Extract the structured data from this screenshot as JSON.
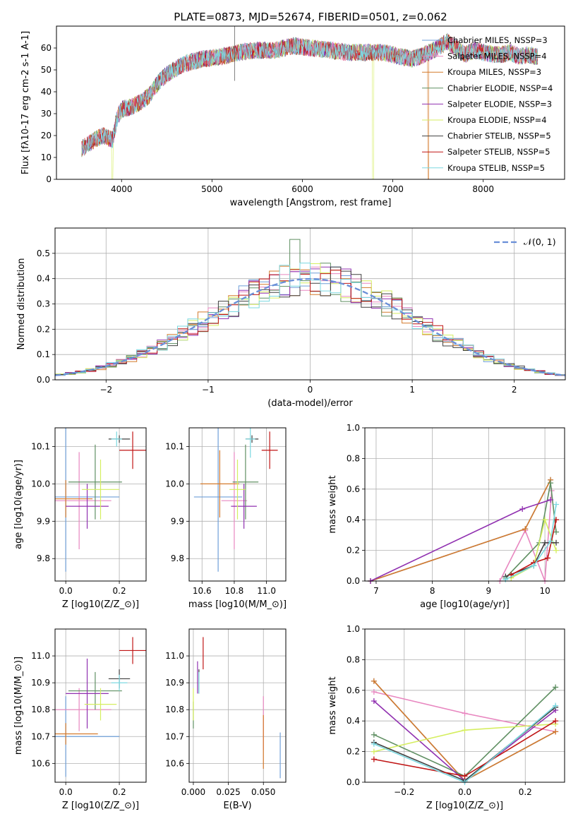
{
  "chart_data": [
    {
      "id": "spectrum",
      "type": "line",
      "title": "PLATE=0873, MJD=52674, FIBERID=0501, z=0.062",
      "xlabel": "wavelength [Angstrom, rest frame]",
      "ylabel": "Flux [f$_\\lambda$10$^{-17}$ erg cm$^{-2}$ s$^{-1}$ A$^{-1}$]",
      "xlim": [
        3280,
        8900
      ],
      "ylim": [
        0,
        70
      ],
      "xticks": [
        4000,
        5000,
        6000,
        7000,
        8000
      ],
      "yticks": [
        0,
        10,
        20,
        30,
        40,
        50,
        60
      ],
      "grid": false,
      "legend_position": "top-right",
      "legend": [
        "Chabrier MILES, N$_{SSP}$=3",
        "Salpeter MILES, N$_{SSP}$=4",
        "Kroupa MILES, N$_{SSP}$=3",
        "Chabrier ELODIE, N$_{SSP}$=4",
        "Salpeter ELODIE, N$_{SSP}$=3",
        "Kroupa ELODIE, N$_{SSP}$=4",
        "Chabrier STELIB, N$_{SSP}$=5",
        "Salpeter STELIB, N$_{SSP}$=5",
        "Kroupa STELIB, N$_{SSP}$=5"
      ],
      "continuum": {
        "x": [
          3560,
          3700,
          3800,
          3900,
          3950,
          4000,
          4100,
          4200,
          4300,
          4400,
          4500,
          4700,
          4900,
          5100,
          5300,
          5500,
          5700,
          5900,
          6100,
          6300,
          6500,
          6700,
          6900,
          7100,
          7200,
          7300,
          7400,
          7500,
          7600,
          7700,
          7800,
          7900,
          8000,
          8100,
          8200,
          8300,
          8400,
          8500,
          8600
        ],
        "y": [
          14,
          18,
          20,
          18,
          28,
          32,
          33,
          35,
          38,
          44,
          48,
          53,
          55,
          56,
          58,
          59,
          59,
          61,
          60,
          59,
          58,
          58,
          58,
          56,
          55,
          56,
          58,
          60,
          63,
          60,
          57,
          59,
          58,
          57,
          57,
          58,
          56,
          57,
          56
        ]
      },
      "x_start": 3560,
      "x_end": 8600
    },
    {
      "id": "residuals",
      "type": "line",
      "xlabel": "(data-model)/error",
      "ylabel": "Normed distribution",
      "xlim": [
        -2.5,
        2.5
      ],
      "ylim": [
        0,
        0.6
      ],
      "xticks": [
        -2,
        -1,
        0,
        1,
        2
      ],
      "yticks": [
        0.0,
        0.1,
        0.2,
        0.3,
        0.4,
        0.5
      ],
      "grid": true,
      "legend_position": "top-right",
      "legend": [
        "$\\mathcal{N}(0,1)$"
      ],
      "hist_bin_width": 0.1
    },
    {
      "id": "age-Z",
      "type": "scatter",
      "xlabel": "Z [log$_{10}$(Z/Z$_\\odot$)]",
      "ylabel": "age  [log$_{10}$(age/yr)]",
      "xlim": [
        -0.04,
        0.3
      ],
      "ylim": [
        9.74,
        10.15
      ],
      "xticks": [
        0.0,
        0.2
      ],
      "yticks": [
        9.8,
        9.9,
        10.0,
        10.1
      ],
      "grid": true,
      "points": [
        {
          "x": 0.0,
          "y": 9.965,
          "xerr": 0.2,
          "yerr": 0.2
        },
        {
          "x": 0.05,
          "y": 9.955,
          "xerr": 0.12,
          "yerr": 0.13
        },
        {
          "x": 0.0,
          "y": 9.96,
          "xerr": 0.1,
          "yerr": 0.05
        },
        {
          "x": 0.11,
          "y": 10.005,
          "xerr": 0.1,
          "yerr": 0.1
        },
        {
          "x": 0.08,
          "y": 9.94,
          "xerr": 0.08,
          "yerr": 0.06
        },
        {
          "x": 0.13,
          "y": 9.985,
          "xerr": 0.07,
          "yerr": 0.08
        },
        {
          "x": 0.2,
          "y": 10.12,
          "xerr": 0.04,
          "yerr": 0.01
        },
        {
          "x": 0.25,
          "y": 10.09,
          "xerr": 0.05,
          "yerr": 0.05
        },
        {
          "x": 0.19,
          "y": 10.12,
          "xerr": 0.02,
          "yerr": 0.02
        }
      ]
    },
    {
      "id": "age-mass",
      "type": "scatter",
      "xlabel": "mass [log$_{10}$(M/M$_\\odot$)]",
      "ylabel": "",
      "xlim": [
        10.52,
        11.12
      ],
      "ylim": [
        9.74,
        10.15
      ],
      "xticks": [
        10.6,
        10.8,
        11.0
      ],
      "yticks": [
        9.8,
        9.9,
        10.0,
        10.1
      ],
      "grid": true,
      "points": [
        {
          "x": 10.7,
          "y": 9.965,
          "xerr": 0.15,
          "yerr": 0.2
        },
        {
          "x": 10.8,
          "y": 9.955,
          "xerr": 0.08,
          "yerr": 0.13
        },
        {
          "x": 10.71,
          "y": 10.0,
          "xerr": 0.12,
          "yerr": 0.09
        },
        {
          "x": 10.87,
          "y": 10.005,
          "xerr": 0.08,
          "yerr": 0.1
        },
        {
          "x": 10.86,
          "y": 9.94,
          "xerr": 0.08,
          "yerr": 0.06
        },
        {
          "x": 10.82,
          "y": 9.985,
          "xerr": 0.05,
          "yerr": 0.08
        },
        {
          "x": 10.91,
          "y": 10.12,
          "xerr": 0.04,
          "yerr": 0.01
        },
        {
          "x": 11.02,
          "y": 10.09,
          "xerr": 0.05,
          "yerr": 0.05
        },
        {
          "x": 10.9,
          "y": 10.12,
          "xerr": 0.03,
          "yerr": 0.05
        }
      ]
    },
    {
      "id": "weight-age",
      "type": "line",
      "xlabel": "age  [log$_{10}$(age/yr)]",
      "ylabel": "mass weight",
      "xlim": [
        6.8,
        10.35
      ],
      "ylim": [
        0,
        1.0
      ],
      "xticks": [
        7,
        8,
        9,
        10
      ],
      "yticks": [
        0.0,
        0.2,
        0.4,
        0.6,
        0.8,
        1.0
      ],
      "grid": true,
      "series": [
        {
          "x": [
            6.9,
            9.65,
            10.1
          ],
          "y": [
            0.0,
            0.34,
            0.66
          ]
        },
        {
          "x": [
            9.2,
            9.65,
            10.0,
            10.12
          ],
          "y": [
            0.0,
            0.33,
            0.0,
            0.59
          ]
        },
        {
          "x": [
            6.9,
            9.65,
            10.1
          ],
          "y": [
            0.0,
            0.34,
            0.66
          ]
        },
        {
          "x": [
            9.3,
            9.9,
            10.1,
            10.2
          ],
          "y": [
            0.02,
            0.25,
            0.64,
            0.32
          ]
        },
        {
          "x": [
            6.9,
            9.6,
            10.1
          ],
          "y": [
            0.0,
            0.47,
            0.53
          ]
        },
        {
          "x": [
            9.4,
            9.8,
            10.0,
            10.2
          ],
          "y": [
            0.02,
            0.1,
            0.4,
            0.2
          ]
        },
        {
          "x": [
            9.3,
            9.8,
            10.0,
            10.2
          ],
          "y": [
            0.03,
            0.1,
            0.25,
            0.25
          ]
        },
        {
          "x": [
            9.4,
            9.8,
            10.05,
            10.2
          ],
          "y": [
            0.04,
            0.12,
            0.15,
            0.4
          ]
        },
        {
          "x": [
            9.3,
            9.8,
            10.1,
            10.2
          ],
          "y": [
            0.01,
            0.1,
            0.26,
            0.5
          ]
        }
      ]
    },
    {
      "id": "mass-Z",
      "type": "scatter",
      "xlabel": "Z [log$_{10}$(Z/Z$_\\odot$)]",
      "ylabel": "mass [log$_{10}$(M/M$_\\odot$)]",
      "xlim": [
        -0.04,
        0.3
      ],
      "ylim": [
        10.53,
        11.1
      ],
      "xticks": [
        0.0,
        0.2
      ],
      "yticks": [
        10.6,
        10.7,
        10.8,
        10.9,
        11.0
      ],
      "grid": true,
      "points": [
        {
          "x": 0.0,
          "y": 10.7,
          "xerr": 0.2,
          "yerr": 0.15
        },
        {
          "x": 0.05,
          "y": 10.8,
          "xerr": 0.12,
          "yerr": 0.08
        },
        {
          "x": 0.0,
          "y": 10.71,
          "xerr": 0.12,
          "yerr": 0.04
        },
        {
          "x": 0.11,
          "y": 10.87,
          "xerr": 0.1,
          "yerr": 0.07
        },
        {
          "x": 0.08,
          "y": 10.86,
          "xerr": 0.08,
          "yerr": 0.13
        },
        {
          "x": 0.13,
          "y": 10.82,
          "xerr": 0.06,
          "yerr": 0.06
        },
        {
          "x": 0.2,
          "y": 10.915,
          "xerr": 0.04,
          "yerr": 0.035
        },
        {
          "x": 0.25,
          "y": 11.02,
          "xerr": 0.05,
          "yerr": 0.05
        },
        {
          "x": 0.2,
          "y": 10.9,
          "xerr": 0.03,
          "yerr": 0.03
        }
      ]
    },
    {
      "id": "mass-EBV",
      "type": "scatter",
      "xlabel": "E(B-V)",
      "ylabel": "",
      "xlim": [
        -0.003,
        0.066
      ],
      "ylim": [
        10.53,
        11.1
      ],
      "xticks": [
        0.0,
        0.025,
        0.05
      ],
      "xtick_labels": [
        "0.000",
        "0.025",
        "0.050"
      ],
      "yticks": [
        10.6,
        10.7,
        10.8,
        10.9,
        11.0
      ],
      "grid": true,
      "points": [
        {
          "x": 0.062,
          "y": 10.63,
          "yerr": 0.085
        },
        {
          "x": 0.05,
          "y": 10.75,
          "yerr": 0.1
        },
        {
          "x": 0.05,
          "y": 10.68,
          "yerr": 0.1
        },
        {
          "x": 0.0,
          "y": 10.78,
          "yerr": 0.05
        },
        {
          "x": 0.003,
          "y": 10.92,
          "yerr": 0.06
        },
        {
          "x": 0.0,
          "y": 10.82,
          "yerr": 0.06
        },
        {
          "x": 0.004,
          "y": 10.905,
          "yerr": 0.045
        },
        {
          "x": 0.007,
          "y": 11.01,
          "yerr": 0.06
        },
        {
          "x": 0.004,
          "y": 10.9,
          "yerr": 0.04
        }
      ]
    },
    {
      "id": "weight-Z",
      "type": "line",
      "xlabel": "Z [log$_{10}$(Z/Z$_\\odot$)]",
      "ylabel": "mass weight",
      "xlim": [
        -0.33,
        0.33
      ],
      "ylim": [
        0,
        1.0
      ],
      "xticks": [
        -0.2,
        0.0,
        0.2
      ],
      "yticks": [
        0.0,
        0.2,
        0.4,
        0.6,
        0.8,
        1.0
      ],
      "grid": true,
      "series": [
        {
          "x": [
            -0.3,
            0.0,
            0.3
          ],
          "y": [
            0.66,
            0.01,
            0.33
          ]
        },
        {
          "x": [
            -0.3,
            0.0,
            0.3
          ],
          "y": [
            0.59,
            0.45,
            0.33
          ]
        },
        {
          "x": [
            -0.3,
            0.0,
            0.3
          ],
          "y": [
            0.66,
            0.01,
            0.33
          ]
        },
        {
          "x": [
            -0.3,
            0.0,
            0.3
          ],
          "y": [
            0.31,
            0.04,
            0.62
          ]
        },
        {
          "x": [
            -0.3,
            0.0,
            0.3
          ],
          "y": [
            0.53,
            0.01,
            0.47
          ]
        },
        {
          "x": [
            -0.3,
            0.0,
            0.3
          ],
          "y": [
            0.2,
            0.34,
            0.38
          ]
        },
        {
          "x": [
            -0.3,
            0.0,
            0.3
          ],
          "y": [
            0.26,
            0.01,
            0.49
          ]
        },
        {
          "x": [
            -0.3,
            0.0,
            0.3
          ],
          "y": [
            0.15,
            0.04,
            0.4
          ]
        },
        {
          "x": [
            -0.3,
            0.0,
            0.3
          ],
          "y": [
            0.25,
            0.0,
            0.5
          ]
        }
      ]
    }
  ],
  "colors": [
    "#6f9fd8",
    "#e887c0",
    "#d47a2c",
    "#5f8f62",
    "#9030b0",
    "#d5ee60",
    "#404040",
    "#c01515",
    "#7bd8e0"
  ],
  "gauss_color": "#6a8fd8"
}
